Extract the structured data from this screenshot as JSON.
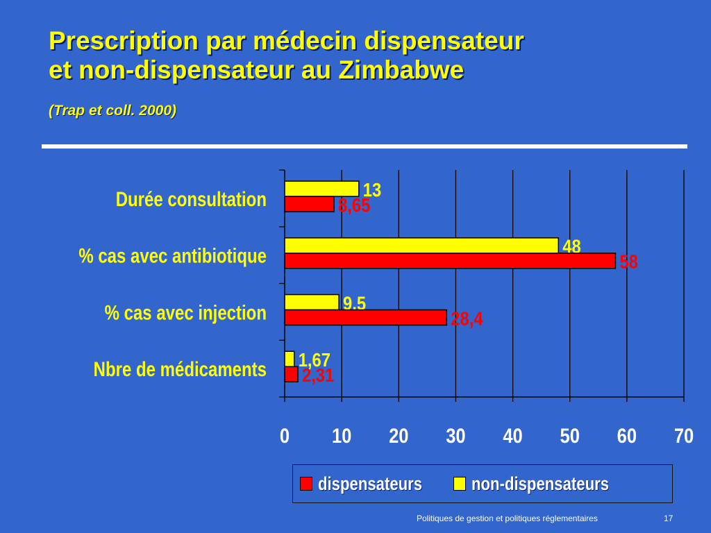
{
  "slide": {
    "title_line1": "Prescription par médecin dispensateur",
    "title_line2": "et non-dispensateur au Zimbabwe",
    "subtitle": "(Trap et coll. 2000)",
    "footer": "Politiques de gestion et politiques réglementaires",
    "page_number": "17"
  },
  "chart_data": {
    "type": "bar",
    "orientation": "horizontal",
    "categories": [
      "Durée consultation",
      "% cas avec antibiotique",
      "% cas avec injection",
      "Nbre de médicaments"
    ],
    "series": [
      {
        "name": "non-dispensateurs",
        "values": [
          13,
          48,
          9.5,
          1.67
        ],
        "labels": [
          "13",
          "48",
          "9,5",
          "1,67"
        ],
        "color": "#ffff00"
      },
      {
        "name": "dispensateurs",
        "values": [
          8.65,
          58,
          28.4,
          2.31
        ],
        "labels": [
          "8,65",
          "58",
          "28,4",
          "2,31"
        ],
        "color": "#ff0000"
      }
    ],
    "xlim": [
      0,
      70
    ],
    "xticks": [
      0,
      10,
      20,
      30,
      40,
      50,
      60,
      70
    ],
    "grid": true,
    "legend": [
      {
        "name": "dispensateurs",
        "color": "#ff0000"
      },
      {
        "name": "non-dispensateurs",
        "color": "#ffff00"
      }
    ],
    "legend_position": "bottom-right"
  }
}
